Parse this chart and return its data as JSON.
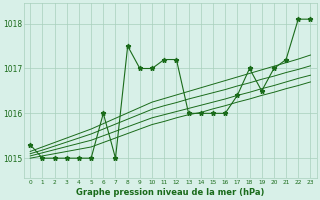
{
  "hours": [
    0,
    1,
    2,
    3,
    4,
    5,
    6,
    7,
    8,
    9,
    10,
    11,
    12,
    13,
    14,
    15,
    16,
    17,
    18,
    19,
    20,
    21,
    22,
    23
  ],
  "pressure": [
    1015.3,
    1015.0,
    1015.0,
    1015.0,
    1015.0,
    1015.0,
    1016.0,
    1015.0,
    1017.5,
    1017.0,
    1017.0,
    1017.2,
    1017.2,
    1016.0,
    1016.0,
    1016.0,
    1016.0,
    1016.4,
    1017.0,
    1016.5,
    1017.0,
    1017.2,
    1018.1,
    1018.1
  ],
  "line_color": "#1a6b1a",
  "bg_color": "#d8f0e8",
  "grid_color": "#a8cfbc",
  "text_color": "#1a6b1a",
  "ylabel_ticks": [
    1015,
    1016,
    1017,
    1018
  ],
  "xlabel": "Graphe pression niveau de la mer (hPa)",
  "ylim_min": 1014.55,
  "ylim_max": 1018.45,
  "xlim_min": -0.5,
  "xlim_max": 23.5,
  "trend_lines": [
    [
      1015.0,
      1015.05,
      1015.1,
      1015.15,
      1015.2,
      1015.25,
      1015.35,
      1015.45,
      1015.55,
      1015.65,
      1015.75,
      1015.82,
      1015.9,
      1015.97,
      1016.02,
      1016.1,
      1016.17,
      1016.25,
      1016.32,
      1016.4,
      1016.47,
      1016.55,
      1016.62,
      1016.7
    ],
    [
      1015.05,
      1015.12,
      1015.19,
      1015.26,
      1015.33,
      1015.4,
      1015.5,
      1015.6,
      1015.7,
      1015.8,
      1015.9,
      1015.97,
      1016.04,
      1016.11,
      1016.18,
      1016.25,
      1016.32,
      1016.4,
      1016.47,
      1016.55,
      1016.62,
      1016.7,
      1016.78,
      1016.85
    ],
    [
      1015.1,
      1015.18,
      1015.27,
      1015.36,
      1015.45,
      1015.54,
      1015.65,
      1015.76,
      1015.87,
      1015.98,
      1016.09,
      1016.17,
      1016.24,
      1016.32,
      1016.39,
      1016.46,
      1016.53,
      1016.61,
      1016.68,
      1016.76,
      1016.83,
      1016.91,
      1016.98,
      1017.06
    ],
    [
      1015.15,
      1015.25,
      1015.35,
      1015.45,
      1015.55,
      1015.65,
      1015.77,
      1015.89,
      1016.01,
      1016.13,
      1016.25,
      1016.33,
      1016.41,
      1016.49,
      1016.57,
      1016.65,
      1016.73,
      1016.81,
      1016.89,
      1016.97,
      1017.05,
      1017.13,
      1017.21,
      1017.3
    ]
  ]
}
